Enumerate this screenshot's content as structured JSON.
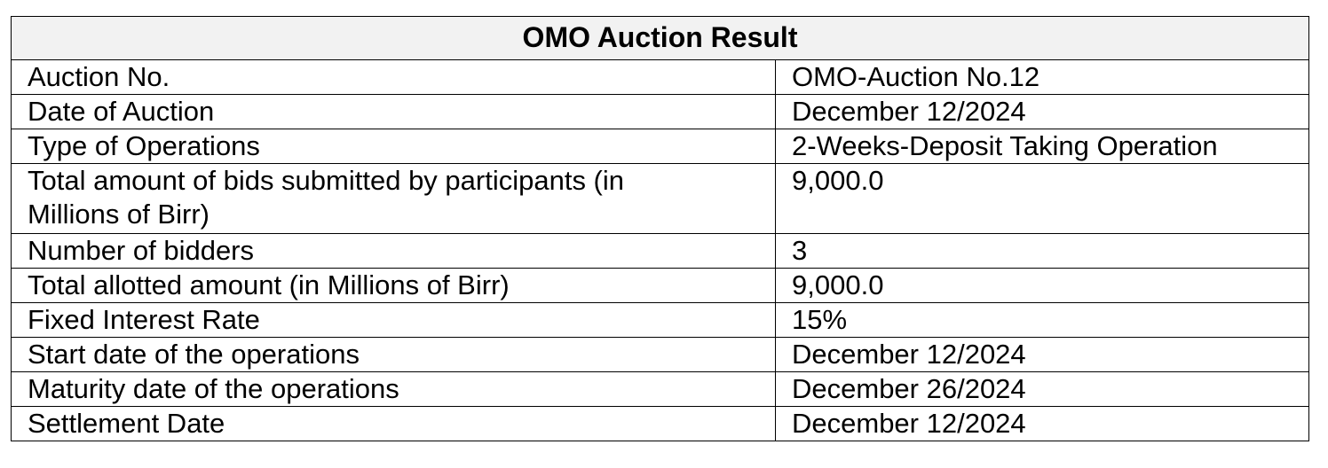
{
  "table": {
    "title": "OMO Auction Result",
    "rows": [
      {
        "label": "Auction No.",
        "value": "OMO-Auction No.12"
      },
      {
        "label": "Date of Auction",
        "value": "December 12/2024"
      },
      {
        "label": "Type of Operations",
        "value": "2-Weeks-Deposit Taking Operation"
      },
      {
        "label": "Total amount of bids submitted by participants (in Millions of Birr)",
        "value": "9,000.0"
      },
      {
        "label": "Number of bidders",
        "value": "3"
      },
      {
        "label": "Total allotted amount (in Millions of Birr)",
        "value": "9,000.0"
      },
      {
        "label": "Fixed Interest Rate",
        "value": "15%"
      },
      {
        "label": "Start date of the operations",
        "value": "December 12/2024"
      },
      {
        "label": "Maturity date of the operations",
        "value": "December 26/2024"
      },
      {
        "label": "Settlement Date",
        "value": "December 12/2024"
      }
    ]
  },
  "colors": {
    "header_background": "#f2f2f2",
    "border": "#000000",
    "text": "#000000"
  }
}
